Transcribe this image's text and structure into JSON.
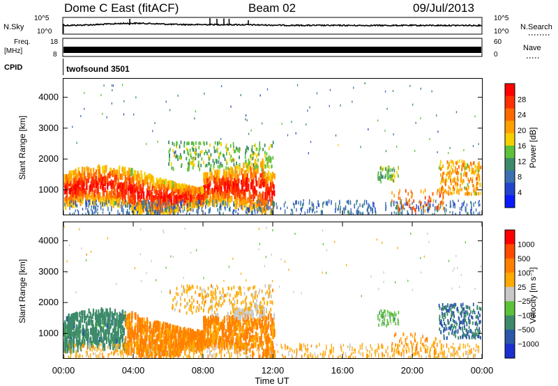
{
  "header": {
    "station": "Dome C East (fitACF)",
    "beam": "Beam 02",
    "date": "09/Jul/2013"
  },
  "strips": {
    "nsky_label": "N.Sky",
    "nsearch_label": "N.Search",
    "freq_label_1": "Freq.",
    "freq_label_2": "[MHz]",
    "nave_label": "Nave",
    "cpid_label": "CPID",
    "cpid_name": "twofsound 3501",
    "nsky_ticks": [
      "10^5",
      "10^0"
    ],
    "nsearch_ticks": [
      "10^5",
      "10^0"
    ],
    "freq_ticks": [
      "18",
      "8"
    ],
    "nave_ticks": [
      "60",
      "0"
    ]
  },
  "colors": {
    "power_scale": [
      "#0a1aff",
      "#2244cc",
      "#3b6fb0",
      "#3d8a6a",
      "#5cc23a",
      "#f5d000",
      "#ffa000",
      "#ff6a00",
      "#ff3000",
      "#ff0000"
    ],
    "velocity_scale": [
      "#ff0000",
      "#ff4a00",
      "#ff8000",
      "#ffaa00",
      "#c8c8c8",
      "#5cc23a",
      "#3d8a6a",
      "#2a57a8",
      "#1a2fd0"
    ]
  },
  "chart_data": [
    {
      "type": "heatmap",
      "name": "power",
      "xlabel": "",
      "ylabel": "Slant Range [km]",
      "yticks": [
        "1000",
        "2000",
        "3000",
        "4000"
      ],
      "ylim": [
        200,
        4600
      ],
      "colorbar_label": "Power [dB]",
      "colorbar_ticks": [
        "4",
        "8",
        "12",
        "16",
        "20",
        "24",
        "28"
      ]
    },
    {
      "type": "heatmap",
      "name": "velocity",
      "xlabel": "Time UT",
      "ylabel": "Slant Range [km]",
      "yticks": [
        "1000",
        "2000",
        "3000",
        "4000"
      ],
      "ylim": [
        200,
        4600
      ],
      "xticks": [
        "00:00",
        "04:00",
        "08:00",
        "12:00",
        "16:00",
        "20:00",
        "00:00"
      ],
      "colorbar_label": "Velocity [m s⁻¹]",
      "colorbar_ticks": [
        "1000",
        "500",
        "100",
        "25",
        "−25",
        "−100",
        "−500",
        "−1000"
      ]
    }
  ]
}
